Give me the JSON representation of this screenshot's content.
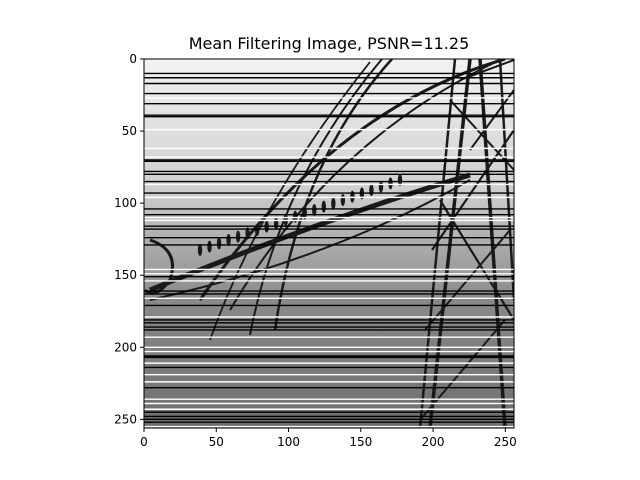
{
  "figure": {
    "title": "Mean Filtering Image, PSNR=11.25"
  },
  "image": {
    "subject": "grayscale photo of power transmission tower and insulator cables with horizontal line artifacts",
    "x_range": [
      0,
      256
    ],
    "y_range": [
      0,
      256
    ],
    "y_inverted": true
  },
  "axes": {
    "x_ticks": [
      0,
      50,
      100,
      150,
      200,
      250
    ],
    "y_ticks": [
      0,
      50,
      100,
      150,
      200,
      250
    ],
    "x_tick_labels": [
      "0",
      "50",
      "100",
      "150",
      "200",
      "250"
    ],
    "y_tick_labels": [
      "0",
      "50",
      "100",
      "150",
      "200",
      "250"
    ]
  },
  "artifacts": {
    "dark_line_rows": [
      10,
      13,
      17,
      24,
      31,
      39,
      40,
      70,
      71,
      78,
      80,
      85,
      93,
      104,
      108,
      116,
      118,
      124,
      129,
      151,
      161,
      163,
      171,
      181,
      183,
      186,
      188,
      206,
      207,
      214,
      228,
      245,
      248,
      250,
      252
    ],
    "light_line_rows": [
      27,
      49,
      62,
      68,
      87,
      96,
      110,
      112,
      146,
      149,
      154,
      166,
      179,
      193,
      200,
      203,
      211,
      219,
      224,
      236,
      239,
      243,
      255
    ]
  },
  "colors": {
    "sky_top": "#f2f2f2",
    "sky_mid": "#cfcfcf",
    "ground_mid": "#8a8a8a",
    "ground_low": "#6e6e6e",
    "structure": "#1a1a1a",
    "dark_line": "#000000",
    "light_line": "#ffffff"
  }
}
